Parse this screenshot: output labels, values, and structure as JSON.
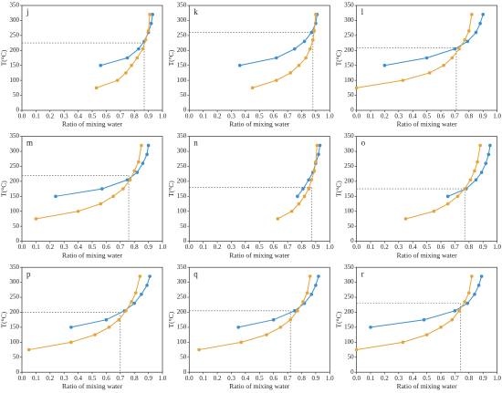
{
  "chart_data": [
    {
      "type": "line",
      "title": "j",
      "xlabel": "Ratio of mixing water",
      "ylabel": "T(°C)",
      "xlim": [
        0,
        1
      ],
      "ylim": [
        0,
        350
      ],
      "xticks": [
        {
          "value": 0,
          "label": "0.0"
        },
        0.1,
        0.2,
        0.3,
        0.4,
        0.5,
        0.6,
        0.7,
        0.8,
        0.9,
        {
          "value": 1,
          "label": "1.0"
        }
      ],
      "yticks": [
        0,
        50,
        100,
        150,
        200,
        250,
        300,
        350
      ],
      "series": [
        {
          "color": "#3a8fcf",
          "x": [
            0.56,
            0.75,
            0.83,
            0.87,
            0.9,
            0.92,
            0.93
          ],
          "values": [
            150,
            175,
            205,
            230,
            260,
            290,
            320
          ]
        },
        {
          "color": "#e8a33a",
          "x": [
            0.53,
            0.68,
            0.74,
            0.78,
            0.82,
            0.86,
            0.88,
            0.9,
            0.91
          ],
          "values": [
            75,
            100,
            125,
            150,
            175,
            205,
            235,
            265,
            320
          ]
        }
      ],
      "intersection": {
        "x": 0.87,
        "y": 225
      }
    },
    {
      "type": "line",
      "title": "k",
      "xlabel": "Ratio of mixing water",
      "ylabel": "T(°C)",
      "xlim": [
        0,
        1
      ],
      "ylim": [
        0,
        350
      ],
      "xticks": [
        {
          "value": 0,
          "label": "0.0"
        },
        0.1,
        0.2,
        0.3,
        0.4,
        0.5,
        0.6,
        0.7,
        0.8,
        0.9,
        {
          "value": 1,
          "label": "1.0"
        }
      ],
      "yticks": [
        0,
        50,
        100,
        150,
        200,
        250,
        300,
        350
      ],
      "series": [
        {
          "color": "#3a8fcf",
          "x": [
            0.36,
            0.62,
            0.75,
            0.82,
            0.87,
            0.9,
            0.91
          ],
          "values": [
            150,
            175,
            205,
            230,
            260,
            290,
            320
          ]
        },
        {
          "color": "#e8a33a",
          "x": [
            0.45,
            0.62,
            0.72,
            0.78,
            0.83,
            0.86,
            0.88,
            0.89,
            0.9
          ],
          "values": [
            75,
            100,
            125,
            150,
            175,
            205,
            235,
            265,
            320
          ]
        }
      ],
      "intersection": {
        "x": 0.88,
        "y": 260
      }
    },
    {
      "type": "line",
      "title": "l",
      "xlabel": "Ratio of mixing water",
      "ylabel": "T(°C)",
      "xlim": [
        0,
        1
      ],
      "ylim": [
        0,
        350
      ],
      "xticks": [
        {
          "value": 0,
          "label": "0.0"
        },
        0.1,
        0.2,
        0.3,
        0.4,
        0.5,
        0.6,
        0.7,
        0.8,
        0.9,
        {
          "value": 1,
          "label": "1.0"
        }
      ],
      "yticks": [
        0,
        50,
        100,
        150,
        200,
        250,
        300,
        350
      ],
      "series": [
        {
          "color": "#3a8fcf",
          "x": [
            0.2,
            0.5,
            0.7,
            0.79,
            0.85,
            0.88,
            0.9
          ],
          "values": [
            150,
            175,
            205,
            230,
            260,
            290,
            320
          ]
        },
        {
          "color": "#e8a33a",
          "x": [
            0,
            0.33,
            0.52,
            0.62,
            0.68,
            0.73,
            0.77,
            0.8,
            0.82
          ],
          "values": [
            75,
            100,
            125,
            150,
            175,
            205,
            235,
            265,
            320
          ]
        }
      ],
      "intersection": {
        "x": 0.71,
        "y": 208
      }
    },
    {
      "type": "line",
      "title": "m",
      "xlabel": "Ratio of mixing water",
      "ylabel": "T(°C)",
      "xlim": [
        0,
        1
      ],
      "ylim": [
        0,
        350
      ],
      "xticks": [
        {
          "value": 0,
          "label": "0.0"
        },
        0.1,
        0.2,
        0.3,
        0.4,
        0.5,
        0.6,
        0.7,
        0.8,
        0.9,
        {
          "value": 1,
          "label": "1.0"
        }
      ],
      "yticks": [
        0,
        50,
        100,
        150,
        200,
        250,
        300,
        350
      ],
      "series": [
        {
          "color": "#3a8fcf",
          "x": [
            0.24,
            0.57,
            0.75,
            0.82,
            0.86,
            0.89,
            0.9
          ],
          "values": [
            150,
            175,
            205,
            230,
            260,
            290,
            320
          ]
        },
        {
          "color": "#e8a33a",
          "x": [
            0.1,
            0.4,
            0.56,
            0.65,
            0.72,
            0.77,
            0.8,
            0.83,
            0.85
          ],
          "values": [
            75,
            100,
            125,
            150,
            175,
            205,
            235,
            265,
            320
          ]
        }
      ],
      "intersection": {
        "x": 0.76,
        "y": 220
      }
    },
    {
      "type": "line",
      "title": "n",
      "xlabel": "Ratio of mixing water",
      "ylabel": "T(°C)",
      "xlim": [
        0,
        1
      ],
      "ylim": [
        0,
        350
      ],
      "xticks": [
        {
          "value": 0,
          "label": "0.0"
        },
        0.1,
        0.2,
        0.3,
        0.4,
        0.5,
        0.6,
        0.7,
        0.8,
        0.9,
        {
          "value": 1,
          "label": "1.0"
        }
      ],
      "yticks": [
        0,
        50,
        100,
        150,
        200,
        250,
        300,
        350
      ],
      "series": [
        {
          "color": "#3a8fcf",
          "x": [
            0.77,
            0.81,
            0.85,
            0.88,
            0.9,
            0.92,
            0.93
          ],
          "values": [
            150,
            175,
            205,
            230,
            260,
            290,
            320
          ]
        },
        {
          "color": "#e8a33a",
          "x": [
            0.63,
            0.73,
            0.78,
            0.82,
            0.85,
            0.87,
            0.89,
            0.9,
            0.91
          ],
          "values": [
            75,
            100,
            125,
            150,
            175,
            205,
            235,
            265,
            320
          ]
        }
      ],
      "intersection": {
        "x": 0.87,
        "y": 180
      }
    },
    {
      "type": "line",
      "title": "o",
      "xlabel": "Ratio of mixing water",
      "ylabel": "T(°C)",
      "xlim": [
        0,
        1
      ],
      "ylim": [
        0,
        350
      ],
      "xticks": [
        {
          "value": 0,
          "label": "0.0"
        },
        0.1,
        0.2,
        0.3,
        0.4,
        0.5,
        0.6,
        0.7,
        0.8,
        0.9,
        {
          "value": 1,
          "label": "1.0"
        }
      ],
      "yticks": [
        0,
        50,
        100,
        150,
        200,
        250,
        300,
        350
      ],
      "series": [
        {
          "color": "#3a8fcf",
          "x": [
            0.65,
            0.78,
            0.85,
            0.89,
            0.92,
            0.94,
            0.95
          ],
          "values": [
            150,
            175,
            205,
            230,
            260,
            290,
            320
          ]
        },
        {
          "color": "#e8a33a",
          "x": [
            0.35,
            0.55,
            0.65,
            0.72,
            0.77,
            0.81,
            0.84,
            0.86,
            0.88
          ],
          "values": [
            75,
            100,
            125,
            150,
            175,
            205,
            235,
            265,
            320
          ]
        }
      ],
      "intersection": {
        "x": 0.77,
        "y": 175
      }
    },
    {
      "type": "line",
      "title": "p",
      "xlabel": "Ratio of mixing water",
      "ylabel": "T(°C)",
      "xlim": [
        0,
        1
      ],
      "ylim": [
        0,
        350
      ],
      "xticks": [
        {
          "value": 0,
          "label": "0.0"
        },
        0.1,
        0.2,
        0.3,
        0.4,
        0.5,
        0.6,
        0.7,
        0.8,
        0.9,
        {
          "value": 1,
          "label": "1.0"
        }
      ],
      "yticks": [
        0,
        50,
        100,
        150,
        200,
        250,
        300,
        350
      ],
      "series": [
        {
          "color": "#3a8fcf",
          "x": [
            0.35,
            0.6,
            0.73,
            0.8,
            0.85,
            0.89,
            0.91
          ],
          "values": [
            150,
            175,
            205,
            230,
            260,
            290,
            320
          ]
        },
        {
          "color": "#e8a33a",
          "x": [
            0.05,
            0.35,
            0.52,
            0.62,
            0.69,
            0.74,
            0.78,
            0.81,
            0.84
          ],
          "values": [
            75,
            100,
            125,
            150,
            175,
            205,
            235,
            265,
            320
          ]
        }
      ],
      "intersection": {
        "x": 0.7,
        "y": 200
      }
    },
    {
      "type": "line",
      "title": "q",
      "xlabel": "Ratio of mixing water",
      "ylabel": "T(°C)",
      "xlim": [
        0,
        1
      ],
      "ylim": [
        0,
        350
      ],
      "xticks": [
        {
          "value": 0,
          "label": "0.0"
        },
        0.1,
        0.2,
        0.3,
        0.4,
        0.5,
        0.6,
        0.7,
        0.8,
        0.9,
        {
          "value": 1,
          "label": "1.0"
        }
      ],
      "yticks": [
        0,
        50,
        100,
        150,
        200,
        250,
        300,
        350
      ],
      "series": [
        {
          "color": "#3a8fcf",
          "x": [
            0.35,
            0.6,
            0.75,
            0.82,
            0.87,
            0.9,
            0.92
          ],
          "values": [
            150,
            175,
            205,
            230,
            260,
            290,
            320
          ]
        },
        {
          "color": "#e8a33a",
          "x": [
            0.07,
            0.37,
            0.55,
            0.65,
            0.72,
            0.77,
            0.81,
            0.84,
            0.86
          ],
          "values": [
            75,
            100,
            125,
            150,
            175,
            205,
            235,
            265,
            320
          ]
        }
      ],
      "intersection": {
        "x": 0.72,
        "y": 205
      }
    },
    {
      "type": "line",
      "title": "r",
      "xlabel": "Ratio of mixing water",
      "ylabel": "T(°C)",
      "xlim": [
        0,
        1
      ],
      "ylim": [
        0,
        350
      ],
      "xticks": [
        {
          "value": 0,
          "label": "0.0"
        },
        0.1,
        0.2,
        0.3,
        0.4,
        0.5,
        0.6,
        0.7,
        0.8,
        0.9,
        {
          "value": 1,
          "label": "1.0"
        }
      ],
      "yticks": [
        0,
        50,
        100,
        150,
        200,
        250,
        300,
        350
      ],
      "series": [
        {
          "color": "#3a8fcf",
          "x": [
            0.1,
            0.48,
            0.7,
            0.79,
            0.84,
            0.87,
            0.89
          ],
          "values": [
            150,
            175,
            205,
            230,
            260,
            290,
            320
          ]
        },
        {
          "color": "#e8a33a",
          "x": [
            0,
            0.33,
            0.5,
            0.6,
            0.68,
            0.73,
            0.77,
            0.8,
            0.82
          ],
          "values": [
            75,
            100,
            125,
            150,
            175,
            205,
            235,
            265,
            320
          ]
        }
      ],
      "intersection": {
        "x": 0.74,
        "y": 230
      }
    }
  ]
}
